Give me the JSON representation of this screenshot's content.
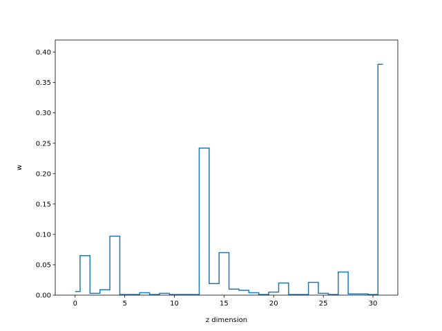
{
  "chart_data": {
    "type": "step",
    "title": "",
    "xlabel": "z dimension",
    "ylabel": "w",
    "xlim": [
      -2.0,
      32.5
    ],
    "ylim": [
      0,
      0.42
    ],
    "xticks": [
      0,
      5,
      10,
      15,
      20,
      25,
      30
    ],
    "xtick_labels": [
      "0",
      "5",
      "10",
      "15",
      "20",
      "25",
      "30"
    ],
    "yticks": [
      0.0,
      0.05,
      0.1,
      0.15,
      0.2,
      0.25,
      0.3,
      0.35,
      0.4
    ],
    "ytick_labels": [
      "0.00",
      "0.05",
      "0.10",
      "0.15",
      "0.20",
      "0.25",
      "0.30",
      "0.35",
      "0.40"
    ],
    "grid": false,
    "step_where": "mid",
    "series_color": "#1f77b4",
    "x": [
      0,
      1,
      2,
      3,
      4,
      5,
      6,
      7,
      8,
      9,
      10,
      11,
      12,
      13,
      14,
      15,
      16,
      17,
      18,
      19,
      20,
      21,
      22,
      23,
      24,
      25,
      26,
      27,
      28,
      29,
      30,
      31
    ],
    "values": [
      0.006,
      0.065,
      0.003,
      0.009,
      0.097,
      0.001,
      0.001,
      0.004,
      0.001,
      0.003,
      0.001,
      0.001,
      0.001,
      0.242,
      0.019,
      0.07,
      0.01,
      0.008,
      0.004,
      0.001,
      0.005,
      0.02,
      0.001,
      0.001,
      0.021,
      0.003,
      0.001,
      0.038,
      0.002,
      0.002,
      0.001,
      0.38
    ]
  }
}
